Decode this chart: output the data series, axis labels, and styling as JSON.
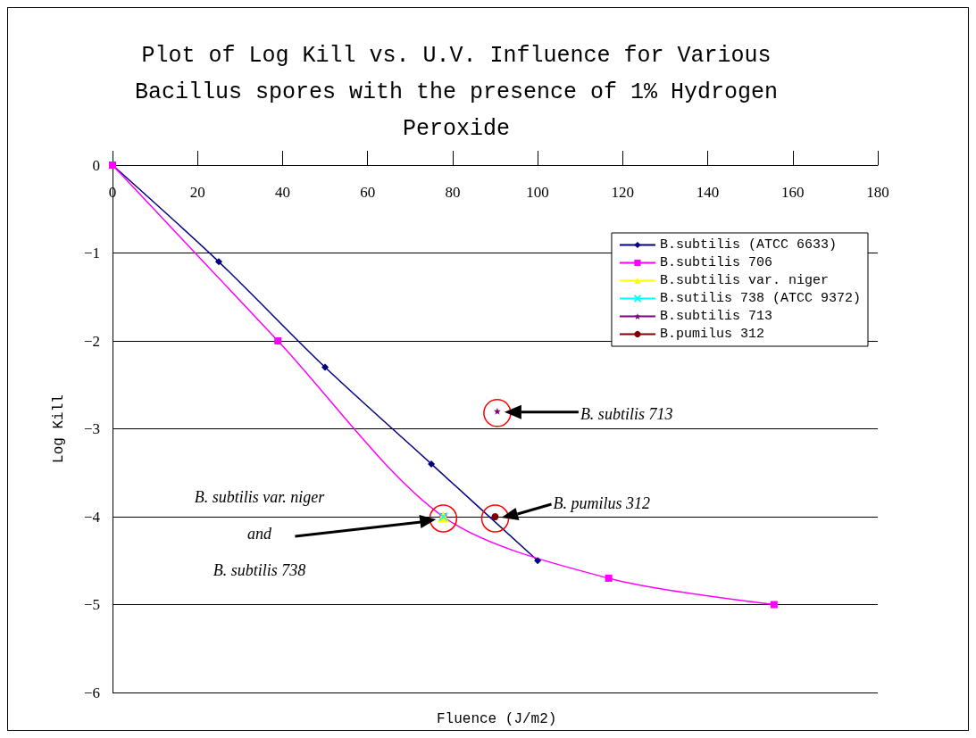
{
  "chart_data": {
    "type": "line",
    "title": "Plot of Log Kill vs. U.V. Influence for Various\nBacillus spores with the presence of 1% Hydrogen\nPeroxide",
    "xlabel": "Fluence (J/m2)",
    "ylabel": "Log Kill",
    "xlim": [
      0,
      180
    ],
    "xticks": [
      0,
      20,
      40,
      60,
      80,
      100,
      120,
      140,
      160,
      180
    ],
    "ylim": [
      -6,
      0
    ],
    "yticks": [
      -6,
      -5,
      -4,
      -3,
      -2,
      -1,
      0
    ],
    "grid": "y",
    "legend": "top right",
    "series": [
      {
        "name": "B.subtilis (ATCC 6633)",
        "color": "#000080",
        "marker": "diamond",
        "x": [
          0,
          25,
          50,
          75,
          100
        ],
        "values": [
          0,
          -1.1,
          -2.3,
          -3.4,
          -4.5
        ]
      },
      {
        "name": "B.subtilis 706",
        "color": "#ff00ff",
        "marker": "square",
        "x": [
          0,
          38.9,
          77.8,
          116.7,
          155.6
        ],
        "values": [
          0,
          -2,
          -4,
          -4.7,
          -5
        ]
      },
      {
        "name": "B.subtilis var. niger",
        "color": "#ffff00",
        "marker": "triangle",
        "x": [
          77.8
        ],
        "values": [
          -4
        ]
      },
      {
        "name": "B.sutilis 738 (ATCC 9372)",
        "color": "#00ffff",
        "marker": "cross",
        "x": [
          77.8
        ],
        "values": [
          -4
        ]
      },
      {
        "name": "B.subtilis 713",
        "color": "#800080",
        "marker": "star",
        "x": [
          90.5
        ],
        "values": [
          -2.8
        ]
      },
      {
        "name": "B.pumilus 312",
        "color": "#800000",
        "marker": "circle",
        "x": [
          90
        ],
        "values": [
          -4
        ]
      }
    ],
    "annotations": [
      "B. subtilis var. niger\nand\nB. subtilis 738",
      "B. subtilis 713",
      "B. pumilus 312"
    ]
  }
}
